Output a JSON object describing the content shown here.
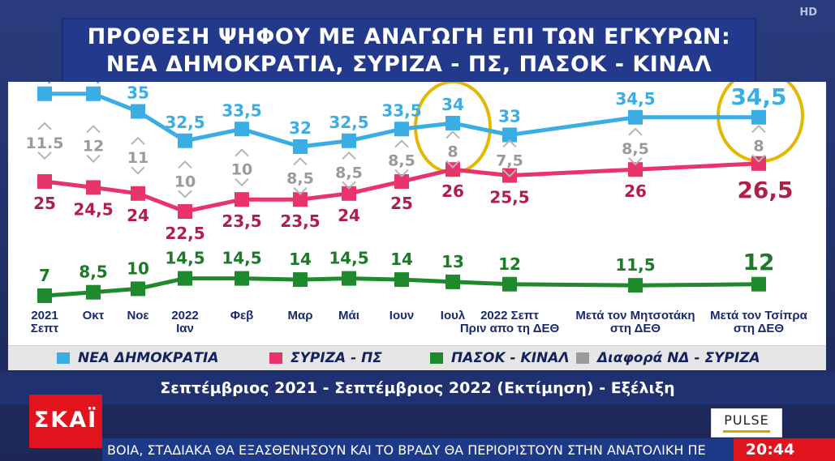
{
  "title": {
    "line1": "ΠΡΟΘΕΣΗ ΨΗΦΟΥ ΜΕ ΑΝΑΓΩΓΗ ΕΠΙ ΤΩΝ ΕΓΚΥΡΩΝ:",
    "line2": "ΝΕΑ ΔΗΜΟΚΡΑΤΙΑ, ΣΥΡΙΖΑ - ΠΣ, ΠΑΣΟΚ - ΚΙΝΑΛ"
  },
  "hd_badge": "HD",
  "subtitle": "Σεπτέμβριος 2021 - Σεπτέμβριος 2022 (Εκτίμηση) - Εξέλιξη",
  "channel_logo": "ΣΚΑΪ",
  "pollster_logo": "PULSE",
  "ticker": "ΒΟΙΑ, ΣΤΑΔΙΑΚΑ ΘΑ ΕΞΑΣΘΕΝΗΣΟΥΝ ΚΑΙ ΤΟ ΒΡΑΔΥ ΘΑ ΠΕΡΙΟΡΙΣΤΟΥΝ ΣΤΗΝ ΑΝΑΤΟΛΙΚΗ ΠΕ",
  "clock": "20:44",
  "chart_data": {
    "type": "line",
    "categories": [
      [
        "2021",
        "Σεπτ"
      ],
      [
        "Οκτ"
      ],
      [
        "Νοε"
      ],
      [
        "2022",
        "Ιαν"
      ],
      [
        "Φεβ"
      ],
      [
        "Μαρ"
      ],
      [
        "Μάι"
      ],
      [
        "Ιουν"
      ],
      [
        "Ιουλ"
      ],
      [
        "2022 Σεπτ",
        "Πριν απο τη ΔΕΘ"
      ],
      [
        "Μετά τον Μητσοτάκη",
        "στη ΔΕΘ"
      ],
      [
        "Μετά τον Τσίπρα",
        "στη ΔΕΘ"
      ]
    ],
    "series": [
      {
        "name": "ΝΕΑ ΔΗΜΟΚΡΑΤΙΑ",
        "color": "#3aaee4",
        "values": [
          36.5,
          36.5,
          35,
          32.5,
          33.5,
          32,
          32.5,
          33.5,
          34,
          33,
          34.5,
          34.5
        ],
        "labels": [
          "36,5",
          "36,5",
          "35",
          "32,5",
          "33,5",
          "32",
          "32,5",
          "33,5",
          "34",
          "33",
          "34,5",
          "34,5"
        ]
      },
      {
        "name": "ΣΥΡΙΖΑ - ΠΣ",
        "color": "#e8336b",
        "values": [
          25,
          24.5,
          24,
          22.5,
          23.5,
          23.5,
          24,
          25,
          26,
          25.5,
          26,
          26.5
        ],
        "labels": [
          "25",
          "24,5",
          "24",
          "22,5",
          "23,5",
          "23,5",
          "24",
          "25",
          "26",
          "25,5",
          "26",
          "26,5"
        ]
      },
      {
        "name": "ΠΑΣΟΚ - ΚΙΝΑΛ",
        "color": "#1f8a2c",
        "values": [
          7,
          8.5,
          10,
          14.5,
          14.5,
          14,
          14.5,
          14,
          13,
          12,
          11.5,
          12
        ],
        "labels": [
          "7",
          "8,5",
          "10",
          "14,5",
          "14,5",
          "14",
          "14,5",
          "14",
          "13",
          "12",
          "11,5",
          "12"
        ]
      }
    ],
    "difference": {
      "name": "Διαφορά ΝΔ - ΣΥΡΙΖΑ",
      "color": "#9a9a9a",
      "values": [
        11.5,
        12,
        11,
        10,
        10,
        8.5,
        8.5,
        8.5,
        8,
        7.5,
        8.5,
        8
      ],
      "labels": [
        "11.5",
        "12",
        "11",
        "10",
        "10",
        "8,5",
        "8,5",
        "8,5",
        "8",
        "7,5",
        "8,5",
        "8"
      ]
    },
    "highlighted_points": [
      8,
      11
    ],
    "highlight_color": "#e3b800",
    "legend": [
      {
        "label": "ΝΕΑ ΔΗΜΟΚΡΑΤΙΑ",
        "color": "#3aaee4"
      },
      {
        "label": "ΣΥΡΙΖΑ - ΠΣ",
        "color": "#e8336b"
      },
      {
        "label": "ΠΑΣΟΚ - ΚΙΝΑΛ",
        "color": "#1f8a2c"
      },
      {
        "label": "Διαφορά ΝΔ - ΣΥΡΙΖΑ",
        "color": "#9a9a9a"
      }
    ],
    "legend_position": "bottom"
  }
}
